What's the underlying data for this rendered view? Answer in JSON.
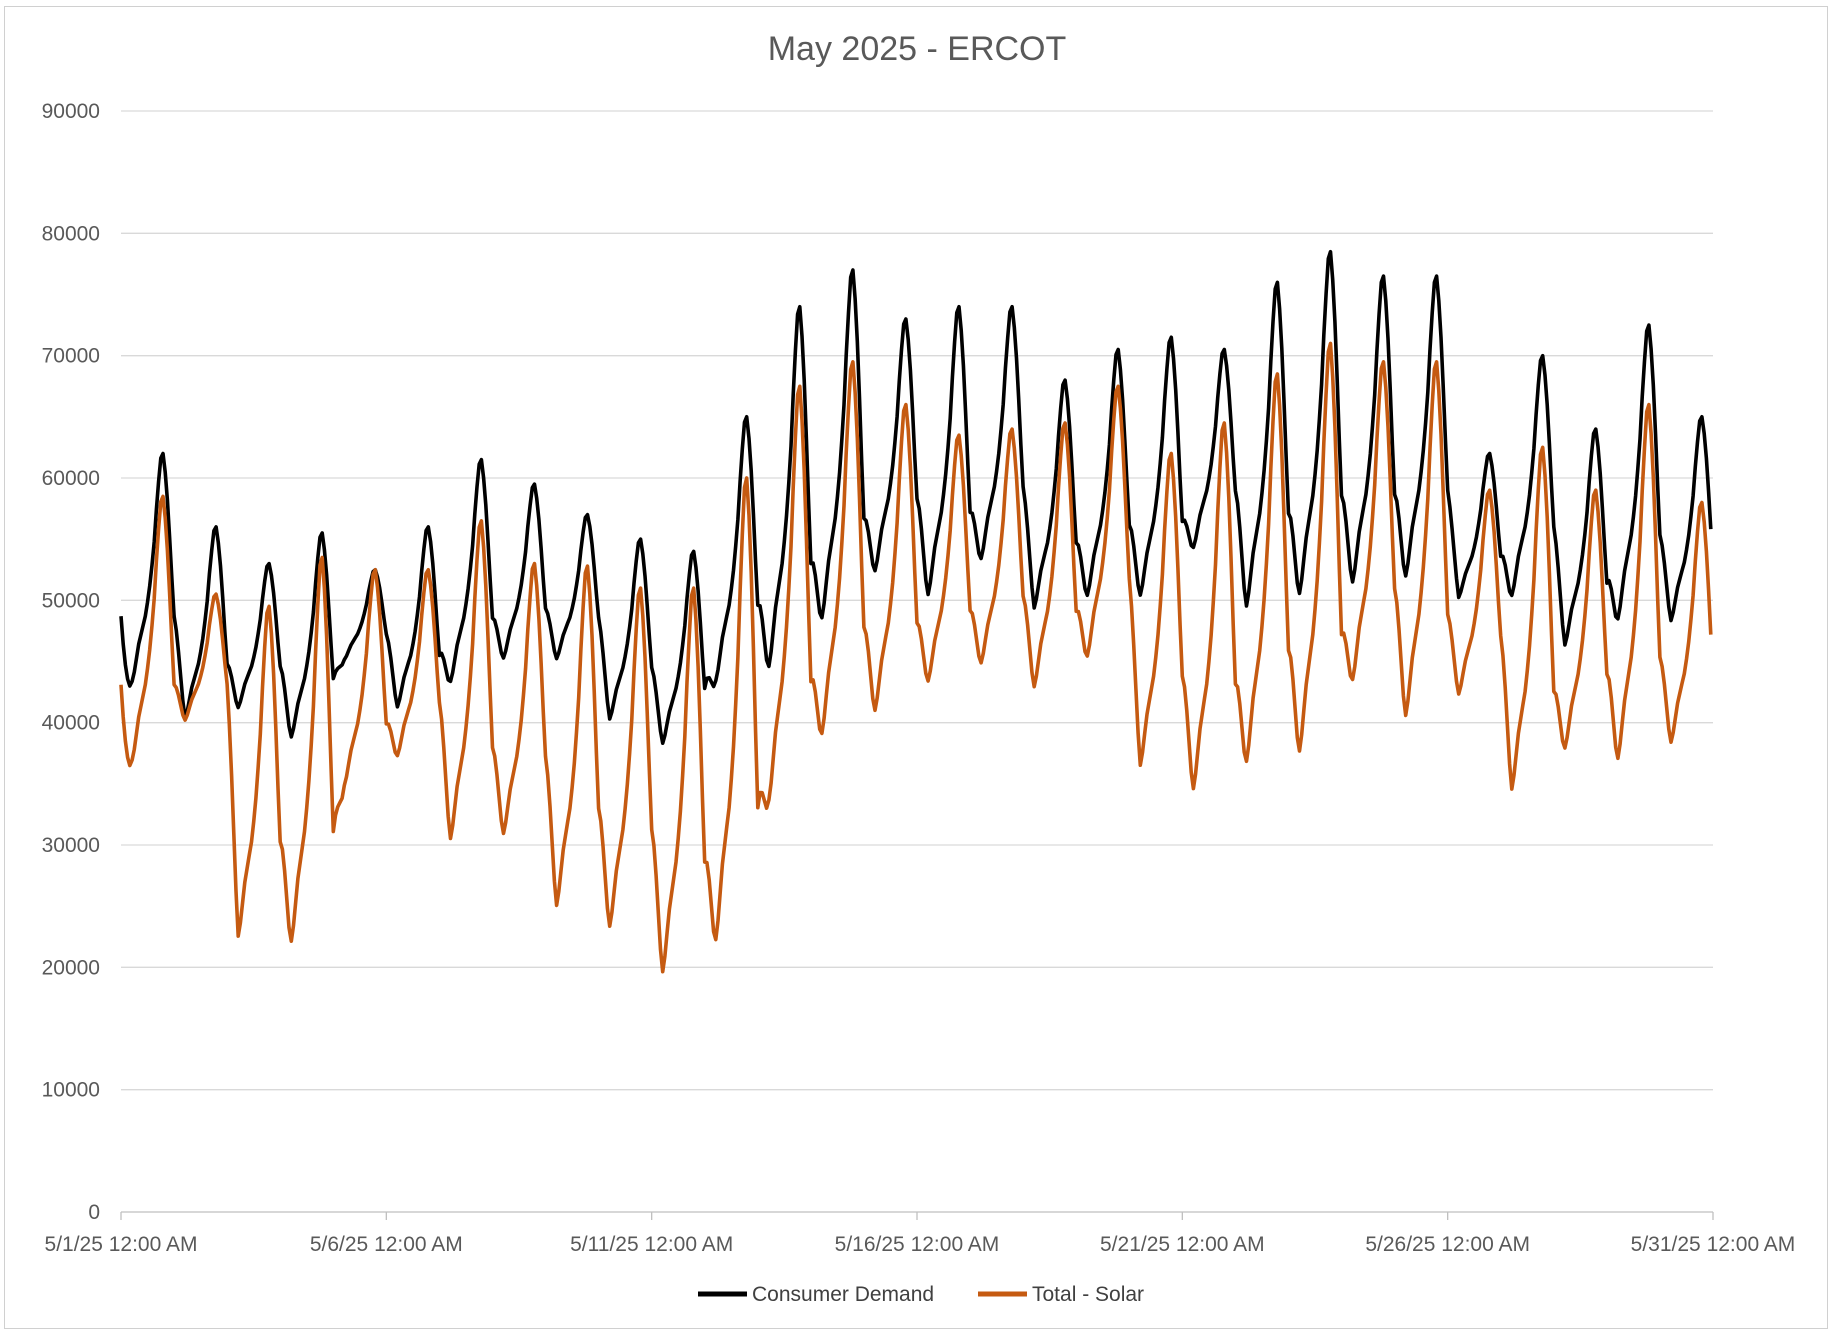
{
  "chart_data": {
    "type": "line",
    "title": "May 2025 - ERCOT",
    "xlabel": "",
    "ylabel": "",
    "ylim": [
      0,
      90000
    ],
    "yticks": [
      0,
      10000,
      20000,
      30000,
      40000,
      50000,
      60000,
      70000,
      80000,
      90000
    ],
    "yticks_text": [
      "0",
      "10000",
      "20000",
      "30000",
      "40000",
      "50000",
      "60000",
      "70000",
      "80000",
      "90000"
    ],
    "xlim": [
      "2025-05-01",
      "2025-05-31"
    ],
    "xticks": [
      "2025-05-01",
      "2025-05-06",
      "2025-05-11",
      "2025-05-16",
      "2025-05-21",
      "2025-05-26",
      "2025-05-31"
    ],
    "xticks_text": [
      "5/1/25 12:00 AM",
      "5/6/25 12:00 AM",
      "5/11/25 12:00 AM",
      "5/16/25 12:00 AM",
      "5/21/25 12:00 AM",
      "5/26/25 12:00 AM",
      "5/31/25 12:00 AM"
    ],
    "grid": true,
    "legend_position": "bottom",
    "days": [
      "2025-05-01",
      "2025-05-02",
      "2025-05-03",
      "2025-05-04",
      "2025-05-05",
      "2025-05-06",
      "2025-05-07",
      "2025-05-08",
      "2025-05-09",
      "2025-05-10",
      "2025-05-11",
      "2025-05-12",
      "2025-05-13",
      "2025-05-14",
      "2025-05-15",
      "2025-05-16",
      "2025-05-17",
      "2025-05-18",
      "2025-05-19",
      "2025-05-20",
      "2025-05-21",
      "2025-05-22",
      "2025-05-23",
      "2025-05-24",
      "2025-05-25",
      "2025-05-26",
      "2025-05-27",
      "2025-05-28",
      "2025-05-29",
      "2025-05-30"
    ],
    "series": [
      {
        "name": "Consumer Demand",
        "color": "#000000",
        "daily_min": [
          43000,
          40000,
          41000,
          38500,
          45000,
          41000,
          43000,
          45000,
          45000,
          40000,
          38000,
          43000,
          44000,
          48000,
          52000,
          50000,
          53000,
          49000,
          50000,
          50000,
          54000,
          49000,
          50000,
          51000,
          51500,
          50000,
          50000,
          46000,
          48000,
          48000
        ],
        "daily_max": [
          62000,
          56000,
          53000,
          55500,
          52500,
          56000,
          61500,
          59500,
          57000,
          55000,
          54000,
          65000,
          74000,
          77000,
          73000,
          74000,
          74000,
          68000,
          70500,
          71500,
          70500,
          76000,
          78500,
          76500,
          76500,
          62000,
          70000,
          64000,
          72500,
          65000
        ]
      },
      {
        "name": "Total - Solar",
        "color": "#c55a11",
        "daily_min": [
          36500,
          40000,
          22000,
          21500,
          34500,
          37000,
          30000,
          30500,
          24500,
          22800,
          19000,
          21500,
          33000,
          38500,
          40500,
          43000,
          44500,
          42500,
          45000,
          36000,
          34000,
          36200,
          37000,
          43000,
          40000,
          42000,
          34000,
          37500,
          36500,
          38000
        ],
        "daily_max": [
          58500,
          50500,
          49500,
          53500,
          52500,
          52500,
          56500,
          53000,
          52800,
          51000,
          51000,
          60000,
          67500,
          69500,
          66000,
          63500,
          64000,
          64500,
          67500,
          62000,
          64500,
          68500,
          71000,
          69500,
          69500,
          59000,
          62500,
          59000,
          66000,
          58000
        ]
      }
    ]
  }
}
